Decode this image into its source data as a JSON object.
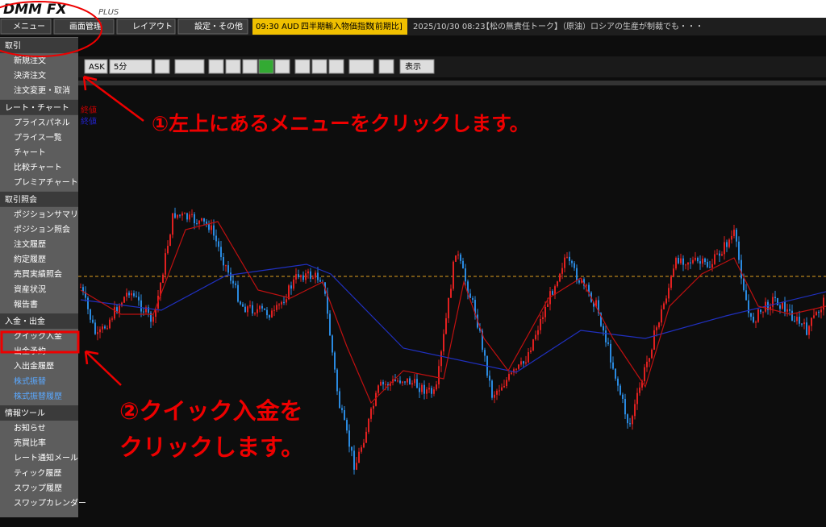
{
  "header": {
    "logo": "DMM FX",
    "logo_sub": "PLUS",
    "menu": [
      "メニュー",
      "画面管理",
      "レイアウト",
      "設定・その他"
    ],
    "ticker_time": "09:30",
    "ticker_currency": "AUD",
    "ticker_event": "四半期輸入物価指数",
    "ticker_tag": "[前期比]",
    "news_time": "2025/10/30 08:23",
    "news_text": "【松の無責任トーク】（原油）ロシアの生産が制裁でも・・・"
  },
  "sidebar": {
    "sections": [
      {
        "title": "取引",
        "items": [
          "新規注文",
          "決済注文",
          "注文変更・取消"
        ]
      },
      {
        "title": "レート・チャート",
        "items": [
          "プライスパネル",
          "プライス一覧",
          "チャート",
          "比較チャート",
          "プレミアチャート"
        ]
      },
      {
        "title": "取引照会",
        "items": [
          "ポジションサマリ",
          "ポジション照会",
          "注文履歴",
          "約定履歴",
          "売買実績照会",
          "資産状況",
          "報告書"
        ]
      },
      {
        "title": "入金・出金",
        "items": [
          "クイック入金",
          "出金予約",
          "入出金履歴",
          "株式振替",
          "株式振替履歴"
        ]
      },
      {
        "title": "情報ツール",
        "items": [
          "お知らせ",
          "売買比率",
          "レート通知メール",
          "ティック履歴",
          "スワップ履歴",
          "スワップカレンダー"
        ]
      }
    ]
  },
  "chart_toolbar": {
    "side": "ASK",
    "interval": "5分",
    "display": "表示"
  },
  "chart_legend": [
    "終値",
    "終値"
  ],
  "annotations": {
    "step1": "①左上にあるメニューをクリックします。",
    "step2": [
      "②クイック入金を",
      "クリックします。"
    ]
  }
}
